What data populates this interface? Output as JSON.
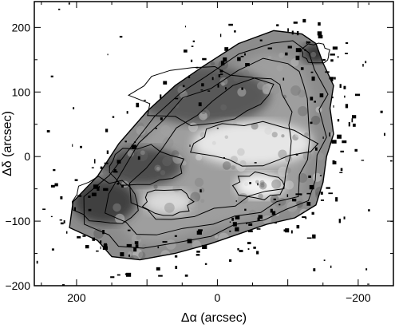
{
  "chart_data": {
    "type": "heatmap",
    "xlabel": "Δα (arcsec)",
    "ylabel": "Δδ (arcsec)",
    "xlim": [
      260,
      -250
    ],
    "ylim": [
      -200,
      240
    ],
    "x_ticks": [
      "200",
      "0",
      "−200"
    ],
    "y_ticks": [
      "200",
      "100",
      "0",
      "−100",
      "−200"
    ],
    "x_tick_values": [
      200,
      0,
      -200
    ],
    "y_tick_values": [
      200,
      100,
      0,
      -100,
      -200
    ],
    "colormap": "grayscale",
    "contours": true,
    "map_outline": [
      [
        170,
        -130
      ],
      [
        210,
        -110
      ],
      [
        205,
        -70
      ],
      [
        170,
        -30
      ],
      [
        140,
        20
      ],
      [
        100,
        70
      ],
      [
        60,
        110
      ],
      [
        20,
        140
      ],
      [
        -30,
        175
      ],
      [
        -80,
        195
      ],
      [
        -120,
        190
      ],
      [
        -140,
        175
      ],
      [
        -150,
        145
      ],
      [
        -165,
        110
      ],
      [
        -160,
        75
      ],
      [
        -165,
        35
      ],
      [
        -155,
        0
      ],
      [
        -150,
        -40
      ],
      [
        -140,
        -75
      ],
      [
        -110,
        -95
      ],
      [
        -70,
        -105
      ],
      [
        -30,
        -120
      ],
      [
        10,
        -135
      ],
      [
        60,
        -150
      ],
      [
        110,
        -160
      ],
      [
        150,
        -155
      ]
    ],
    "bright_regions": [
      {
        "center": [
          -50,
          20
        ],
        "radius": [
          85,
          35
        ],
        "level": 0.9
      },
      {
        "center": [
          -60,
          -45
        ],
        "radius": [
          35,
          20
        ],
        "level": 0.95
      },
      {
        "center": [
          70,
          -70
        ],
        "radius": [
          35,
          20
        ],
        "level": 0.85
      }
    ],
    "dark_regions": [
      {
        "center": [
          20,
          95
        ],
        "radius": [
          95,
          45
        ],
        "level": 0.35
      },
      {
        "center": [
          105,
          -15
        ],
        "radius": [
          55,
          30
        ],
        "level": 0.3
      },
      {
        "center": [
          160,
          -70
        ],
        "radius": [
          45,
          35
        ],
        "level": 0.25
      },
      {
        "center": [
          -140,
          160
        ],
        "radius": [
          20,
          15
        ],
        "level": 0.2
      }
    ]
  }
}
